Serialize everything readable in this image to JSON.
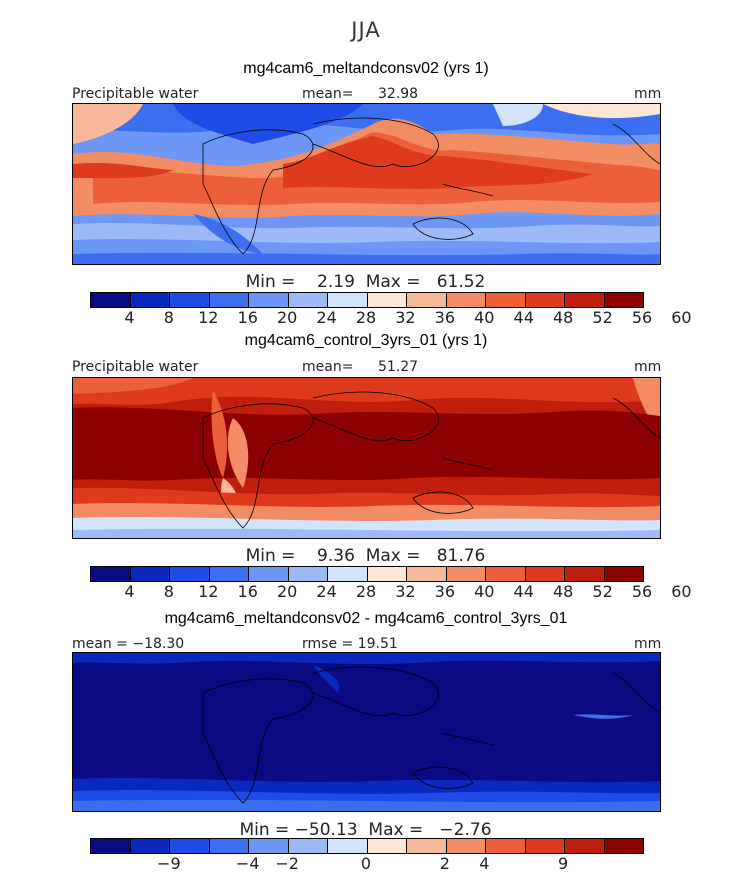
{
  "season": "JJA",
  "colors": {
    "precip_scale": [
      "#0a0a82",
      "#0a28be",
      "#1e4be6",
      "#3c6ef0",
      "#6e96f5",
      "#9cbaf8",
      "#d2e3fb",
      "#fde6d6",
      "#f8b99a",
      "#f28c64",
      "#eb5f3a",
      "#de3b1e",
      "#c01e0c",
      "#8c0000"
    ],
    "diff_scale": [
      "#0a0a82",
      "#0a28be",
      "#1e4be6",
      "#3c6ef0",
      "#6e96f5",
      "#9cbaf8",
      "#d2e3fb",
      "#fde6d6",
      "#f8b99a",
      "#f28c64",
      "#eb5f3a",
      "#de3b1e",
      "#c01e0c",
      "#8c0000"
    ]
  },
  "panels": [
    {
      "title": "mg4cam6_meltandconsv02 (yrs 1)",
      "variable": "Precipitable water",
      "mean_label": "mean=",
      "mean_value": "32.98",
      "units": "mm",
      "minmax": "Min =    2.19  Max =   61.52",
      "min": 2.19,
      "max": 61.52,
      "mean": 32.98,
      "colorbar_ticks": [
        "4",
        "8",
        "12",
        "16",
        "20",
        "24",
        "28",
        "32",
        "36",
        "40",
        "44",
        "48",
        "52",
        "56",
        "60"
      ]
    },
    {
      "title": "mg4cam6_control_3yrs_01 (yrs 1)",
      "variable": "Precipitable water",
      "mean_label": "mean=",
      "mean_value": "51.27",
      "units": "mm",
      "minmax": "Min =    9.36  Max =   81.76",
      "min": 9.36,
      "max": 81.76,
      "mean": 51.27,
      "colorbar_ticks": [
        "4",
        "8",
        "12",
        "16",
        "20",
        "24",
        "28",
        "32",
        "36",
        "40",
        "44",
        "48",
        "52",
        "56",
        "60"
      ]
    },
    {
      "title": "mg4cam6_meltandconsv02 - mg4cam6_control_3yrs_01",
      "mean_text": "mean = −18.30",
      "rmse_text": "rmse =  19.51",
      "units": "mm",
      "minmax": "Min = −50.13  Max =   −2.76",
      "min": -50.13,
      "max": -2.76,
      "mean": -18.3,
      "rmse": 19.51,
      "colorbar_ticks": [
        "−9",
        "−4",
        "−2",
        "0",
        "2",
        "4",
        "9"
      ]
    }
  ]
}
